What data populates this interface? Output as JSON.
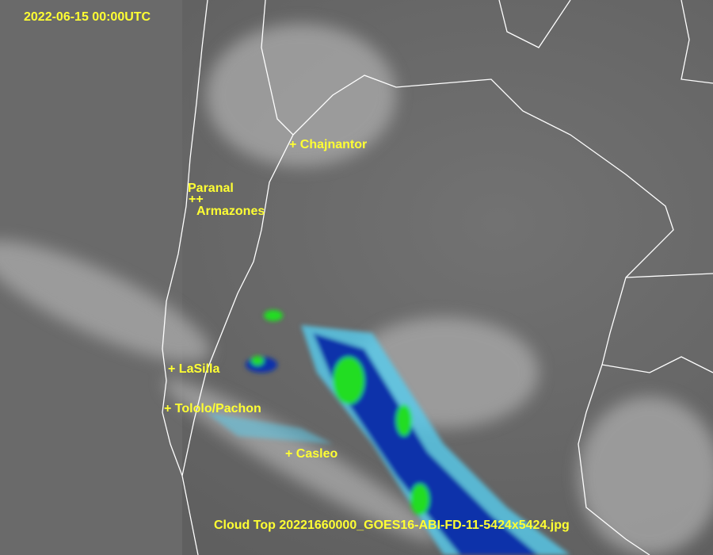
{
  "timestamp": "2022-06-15 00:00UTC",
  "caption": "Cloud Top 20221660000_GOES16-ABI-FD-11-5424x5424.jpg",
  "sites": [
    {
      "label": "+ Chajnantor"
    },
    {
      "label": "Paranal"
    },
    {
      "label": "++"
    },
    {
      "label": "Armazones"
    },
    {
      "label": "+ LaSilla"
    },
    {
      "label": "+ Tololo/Pachon"
    },
    {
      "label": "+ Casleo"
    }
  ],
  "colors": {
    "label": "#ffff33",
    "border": "#ffffff",
    "cloud_high": "#22dd22",
    "cloud_mid": "#1133aa",
    "cloud_low": "#55ccee"
  }
}
